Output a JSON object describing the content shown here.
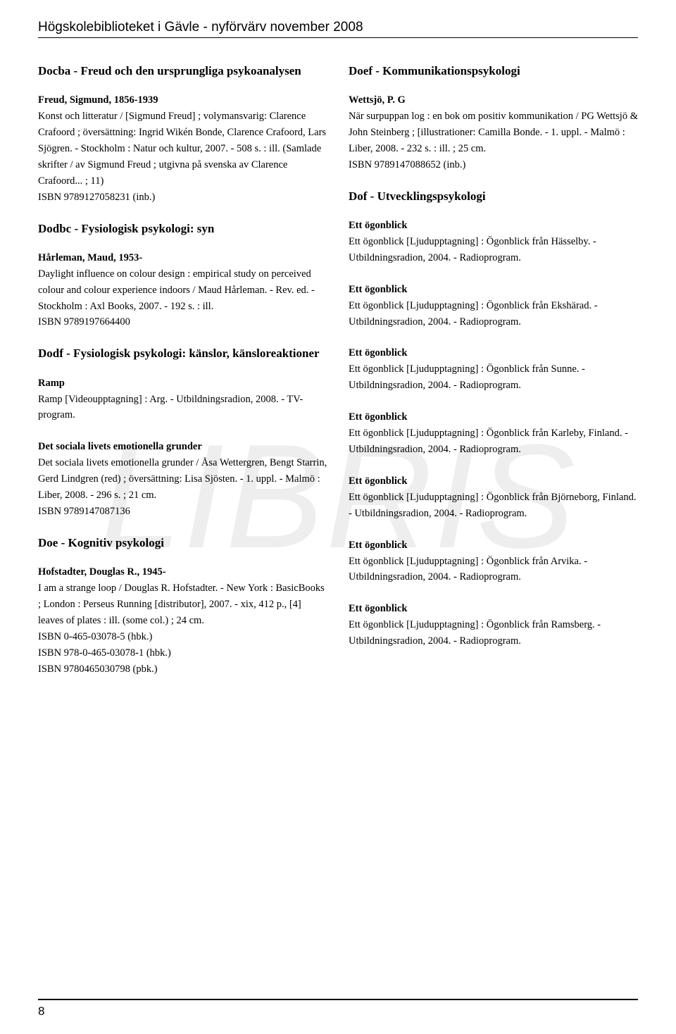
{
  "header": "Högskolebiblioteket i Gävle  -  nyförvärv november 2008",
  "pageNumber": "8",
  "watermark": "LIBRIS",
  "left": {
    "sec1": {
      "heading": "Docba - Freud och den ursprungliga psykoanalysen",
      "e1": {
        "author": "Freud, Sigmund, 1856-1939",
        "body": "Konst och litteratur / [Sigmund Freud] ; volymansvarig: Clarence Crafoord ; översättning: Ingrid Wikén Bonde, Clarence Crafoord, Lars Sjögren. - Stockholm : Natur och kultur, 2007. - 508 s. : ill. (Samlade skrifter / av Sigmund Freud ; utgivna på svenska av Clarence Crafoord... ; 11)",
        "isbn": "ISBN 9789127058231 (inb.)"
      }
    },
    "sec2": {
      "heading": "Dodbc - Fysiologisk psykologi: syn",
      "e1": {
        "author": "Hårleman, Maud, 1953-",
        "body": "Daylight influence on colour design : empirical study on perceived colour and colour experience indoors / Maud Hårleman. - Rev. ed. - Stockholm : Axl Books, 2007. - 192 s. : ill.",
        "isbn": "ISBN 9789197664400"
      }
    },
    "sec3": {
      "heading": "Dodf - Fysiologisk psykologi: känslor, känsloreaktioner",
      "e1": {
        "author": "Ramp",
        "body": "Ramp [Videoupptagning] : Arg. - Utbildningsradion, 2008. - TV-program."
      },
      "e2": {
        "author": "Det sociala livets emotionella grunder",
        "body": "Det sociala livets emotionella grunder / Åsa Wettergren, Bengt Starrin, Gerd Lindgren (red) ; översättning: Lisa Sjösten. - 1. uppl. - Malmö : Liber, 2008. - 296 s. ; 21 cm.",
        "isbn": "ISBN 9789147087136"
      }
    },
    "sec4": {
      "heading": "Doe - Kognitiv psykologi",
      "e1": {
        "author": "Hofstadter, Douglas R., 1945-",
        "body": "I am a strange loop / Douglas R. Hofstadter. - New York : BasicBooks ; London : Perseus Running [distributor], 2007. - xix, 412 p., [4] leaves of plates : ill. (some col.) ; 24 cm.",
        "isbn1": "ISBN 0-465-03078-5 (hbk.)",
        "isbn2": "ISBN 978-0-465-03078-1 (hbk.)",
        "isbn3": "ISBN 9780465030798 (pbk.)"
      }
    }
  },
  "right": {
    "sec1": {
      "heading": "Doef - Kommunikationspsykologi",
      "e1": {
        "author": "Wettsjö, P. G",
        "body": "När surpuppan log : en bok om positiv kommunikation / PG Wettsjö & John Steinberg ; [illustrationer: Camilla Bonde. - 1. uppl. - Malmö : Liber, 2008. - 232 s. : ill. ; 25 cm.",
        "isbn": "ISBN 9789147088652 (inb.)"
      }
    },
    "sec2": {
      "heading": "Dof - Utvecklingspsykologi",
      "e1": {
        "author": "Ett ögonblick",
        "body": "Ett ögonblick [Ljudupptagning] : Ögonblick från Hässelby. - Utbildningsradion, 2004. - Radioprogram."
      },
      "e2": {
        "author": "Ett ögonblick",
        "body": "Ett ögonblick [Ljudupptagning] : Ögonblick från Ekshärad. - Utbildningsradion, 2004. - Radioprogram."
      },
      "e3": {
        "author": "Ett ögonblick",
        "body": "Ett ögonblick [Ljudupptagning] : Ögonblick från Sunne. - Utbildningsradion, 2004. - Radioprogram."
      },
      "e4": {
        "author": "Ett ögonblick",
        "body": "Ett ögonblick [Ljudupptagning] : Ögonblick från Karleby, Finland. - Utbildningsradion, 2004. - Radioprogram."
      },
      "e5": {
        "author": "Ett ögonblick",
        "body": "Ett ögonblick [Ljudupptagning] : Ögonblick från Björneborg, Finland. - Utbildningsradion, 2004. - Radioprogram."
      },
      "e6": {
        "author": "Ett ögonblick",
        "body": "Ett ögonblick [Ljudupptagning] : Ögonblick från Arvika. - Utbildningsradion, 2004. - Radioprogram."
      },
      "e7": {
        "author": "Ett ögonblick",
        "body": "Ett ögonblick [Ljudupptagning] : Ögonblick från Ramsberg. - Utbildningsradion, 2004. - Radioprogram."
      }
    }
  }
}
